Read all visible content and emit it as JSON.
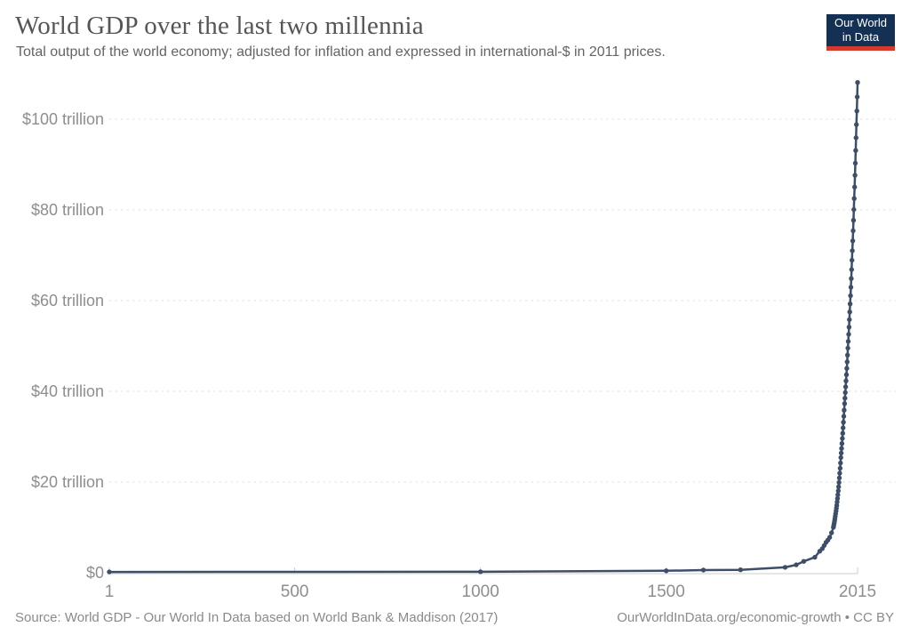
{
  "header": {
    "title": "World GDP over the last two millennia",
    "subtitle": "Total output of the world economy; adjusted for inflation and expressed in international-$ in 2011 prices."
  },
  "logo": {
    "line1": "Our World",
    "line2": "in Data",
    "bg_color": "#143052",
    "stripe_color": "#d5382d"
  },
  "footer": {
    "source": "Source: World GDP - Our World In Data based on World Bank & Maddison (2017)",
    "link": "OurWorldInData.org/economic-growth • CC BY"
  },
  "chart_data": {
    "type": "line",
    "title": "World GDP over the last two millennia",
    "xlabel": "",
    "ylabel": "",
    "units": "trillion international-$ (2011 prices)",
    "xlim": [
      1,
      2015
    ],
    "ylim": [
      0,
      112
    ],
    "grid": "horizontal-dashed",
    "legend_position": "none",
    "line_color": "#3d4e68",
    "axis_color": "#cccccc",
    "grid_color": "#e0e0e0",
    "x_ticks": [
      {
        "value": 1,
        "label": "1"
      },
      {
        "value": 500,
        "label": "500"
      },
      {
        "value": 1000,
        "label": "1000"
      },
      {
        "value": 1500,
        "label": "1500"
      },
      {
        "value": 2015,
        "label": "2015"
      }
    ],
    "y_ticks": [
      {
        "value": 0,
        "label": "$0"
      },
      {
        "value": 20,
        "label": "$20 trillion"
      },
      {
        "value": 40,
        "label": "$40 trillion"
      },
      {
        "value": 60,
        "label": "$60 trillion"
      },
      {
        "value": 80,
        "label": "$80 trillion"
      },
      {
        "value": 100,
        "label": "$100 trillion"
      }
    ],
    "series": [
      {
        "name": "World GDP (trillion international-$, 2011 prices)",
        "points": [
          [
            1,
            0.18
          ],
          [
            1000,
            0.21
          ],
          [
            1500,
            0.43
          ],
          [
            1600,
            0.58
          ],
          [
            1700,
            0.64
          ],
          [
            1820,
            1.2
          ],
          [
            1850,
            1.75
          ],
          [
            1870,
            2.51
          ],
          [
            1900,
            3.42
          ],
          [
            1913,
            4.74
          ],
          [
            1920,
            5.32
          ],
          [
            1925,
            6.0
          ],
          [
            1930,
            6.7
          ],
          [
            1935,
            7.2
          ],
          [
            1940,
            7.81
          ],
          [
            1945,
            8.8
          ],
          [
            1950,
            10.0
          ],
          [
            1951,
            10.45
          ],
          [
            1952,
            10.92
          ],
          [
            1953,
            11.41
          ],
          [
            1954,
            11.92
          ],
          [
            1955,
            12.46
          ],
          [
            1956,
            13.02
          ],
          [
            1957,
            13.61
          ],
          [
            1958,
            14.22
          ],
          [
            1959,
            14.86
          ],
          [
            1960,
            15.6
          ],
          [
            1961,
            16.38
          ],
          [
            1962,
            17.2
          ],
          [
            1963,
            18.06
          ],
          [
            1964,
            18.96
          ],
          [
            1965,
            19.91
          ],
          [
            1966,
            20.9
          ],
          [
            1967,
            21.95
          ],
          [
            1968,
            23.04
          ],
          [
            1969,
            24.2
          ],
          [
            1970,
            25.4
          ],
          [
            1971,
            26.39
          ],
          [
            1972,
            27.42
          ],
          [
            1973,
            28.49
          ],
          [
            1974,
            29.6
          ],
          [
            1975,
            30.75
          ],
          [
            1976,
            31.95
          ],
          [
            1977,
            33.2
          ],
          [
            1978,
            34.49
          ],
          [
            1979,
            35.84
          ],
          [
            1980,
            37.3
          ],
          [
            1981,
            38.49
          ],
          [
            1982,
            39.72
          ],
          [
            1983,
            40.99
          ],
          [
            1984,
            42.3
          ],
          [
            1985,
            43.66
          ],
          [
            1986,
            45.06
          ],
          [
            1987,
            46.5
          ],
          [
            1988,
            47.99
          ],
          [
            1989,
            49.52
          ],
          [
            1990,
            51.0
          ],
          [
            1991,
            52.56
          ],
          [
            1992,
            54.16
          ],
          [
            1993,
            55.81
          ],
          [
            1994,
            57.51
          ],
          [
            1995,
            59.27
          ],
          [
            1996,
            61.08
          ],
          [
            1997,
            62.94
          ],
          [
            1998,
            64.86
          ],
          [
            1999,
            66.84
          ],
          [
            2000,
            68.9
          ],
          [
            2001,
            71.0
          ],
          [
            2002,
            73.17
          ],
          [
            2003,
            75.4
          ],
          [
            2004,
            77.7
          ],
          [
            2005,
            80.07
          ],
          [
            2006,
            82.51
          ],
          [
            2007,
            85.03
          ],
          [
            2008,
            87.62
          ],
          [
            2009,
            90.29
          ],
          [
            2010,
            93.1
          ],
          [
            2011,
            95.9
          ],
          [
            2012,
            98.8
          ],
          [
            2013,
            101.8
          ],
          [
            2014,
            104.9
          ],
          [
            2015,
            108.1
          ]
        ]
      }
    ]
  }
}
